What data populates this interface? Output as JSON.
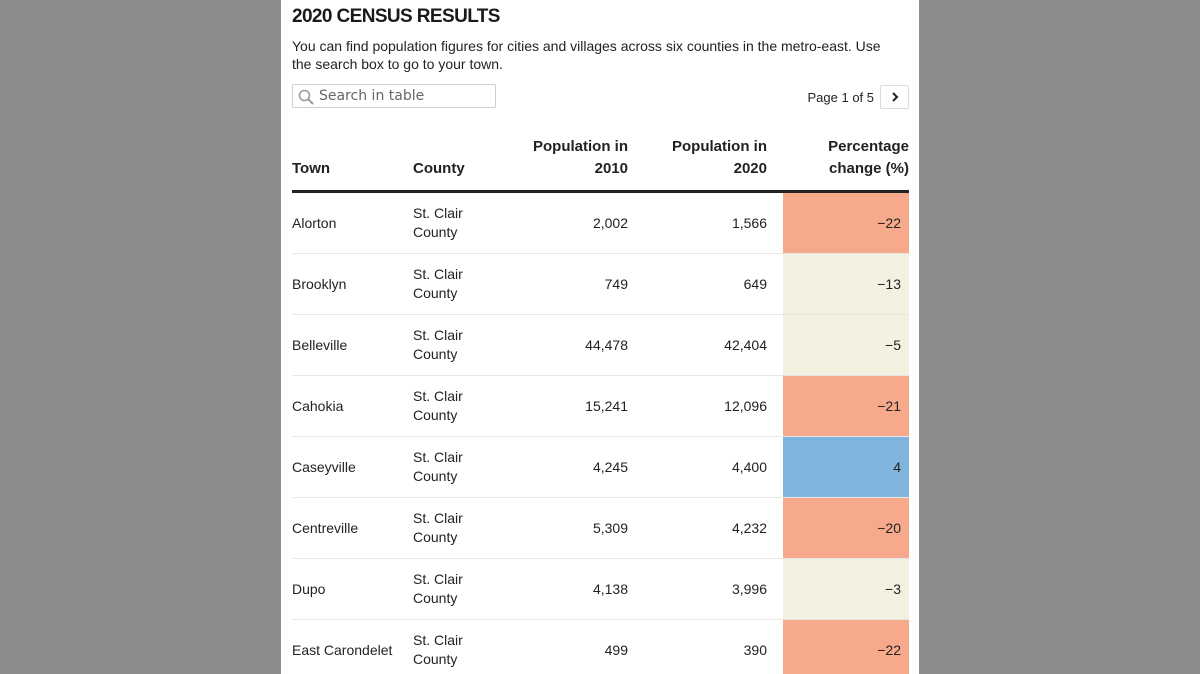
{
  "title": "2020 CENSUS RESULTS",
  "description": "You can find population figures for cities and villages across six counties in the metro-east. Use the search box to go to your town.",
  "search": {
    "placeholder": "Search in table",
    "value": ""
  },
  "pager": {
    "label": "Page 1 of 5",
    "next_icon": "chevron-right-icon"
  },
  "table": {
    "headers": {
      "town": "Town",
      "county": "County",
      "pop2010": "Population in 2010",
      "pop2020": "Population in 2020",
      "pct": "Percentage change (%)"
    },
    "rows": [
      {
        "town": "Alorton",
        "county": "St. Clair County",
        "pop2010": "2,002",
        "pop2020": "1,566",
        "pct": "−22",
        "pct_value": -22
      },
      {
        "town": "Brooklyn",
        "county": "St. Clair County",
        "pop2010": "749",
        "pop2020": "649",
        "pct": "−13",
        "pct_value": -13
      },
      {
        "town": "Belleville",
        "county": "St. Clair County",
        "pop2010": "44,478",
        "pop2020": "42,404",
        "pct": "−5",
        "pct_value": -5
      },
      {
        "town": "Cahokia",
        "county": "St. Clair County",
        "pop2010": "15,241",
        "pop2020": "12,096",
        "pct": "−21",
        "pct_value": -21
      },
      {
        "town": "Caseyville",
        "county": "St. Clair County",
        "pop2010": "4,245",
        "pop2020": "4,400",
        "pct": "4",
        "pct_value": 4
      },
      {
        "town": "Centreville",
        "county": "St. Clair County",
        "pop2010": "5,309",
        "pop2020": "4,232",
        "pct": "−20",
        "pct_value": -20
      },
      {
        "town": "Dupo",
        "county": "St. Clair County",
        "pop2010": "4,138",
        "pop2020": "3,996",
        "pct": "−3",
        "pct_value": -3
      },
      {
        "town": "East Carondelet",
        "county": "St. Clair County",
        "pop2010": "499",
        "pop2020": "390",
        "pct": "−22",
        "pct_value": -22
      }
    ]
  },
  "colors": {
    "strong_decline": "#f7a98c",
    "mild_decline": "#f4f1e1",
    "increase": "#7fb4dd"
  }
}
